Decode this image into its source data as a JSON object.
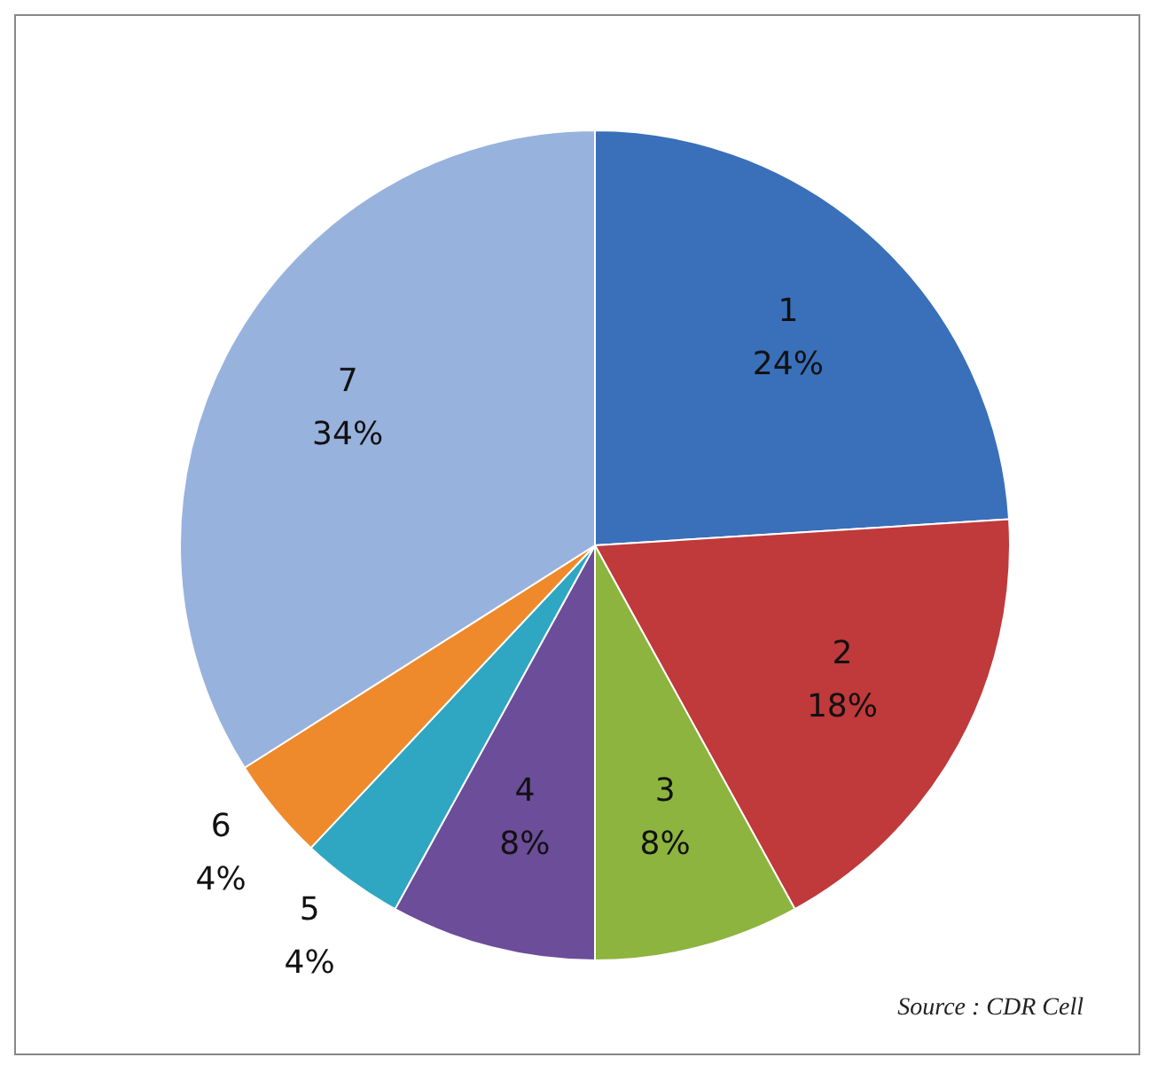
{
  "chart_data": {
    "type": "pie",
    "categories": [
      "1",
      "2",
      "3",
      "4",
      "5",
      "6",
      "7"
    ],
    "values": [
      24,
      18,
      8,
      8,
      4,
      4,
      34
    ],
    "value_labels": [
      "24%",
      "18%",
      "8%",
      "8%",
      "4%",
      "4%",
      "34%"
    ],
    "colors": [
      "#3a6fba",
      "#c0393b",
      "#8db43e",
      "#6c4d99",
      "#2fa6c2",
      "#ee8a2c",
      "#98b2de"
    ],
    "legend": false,
    "annotations": [
      "Source : CDR Cell"
    ]
  }
}
